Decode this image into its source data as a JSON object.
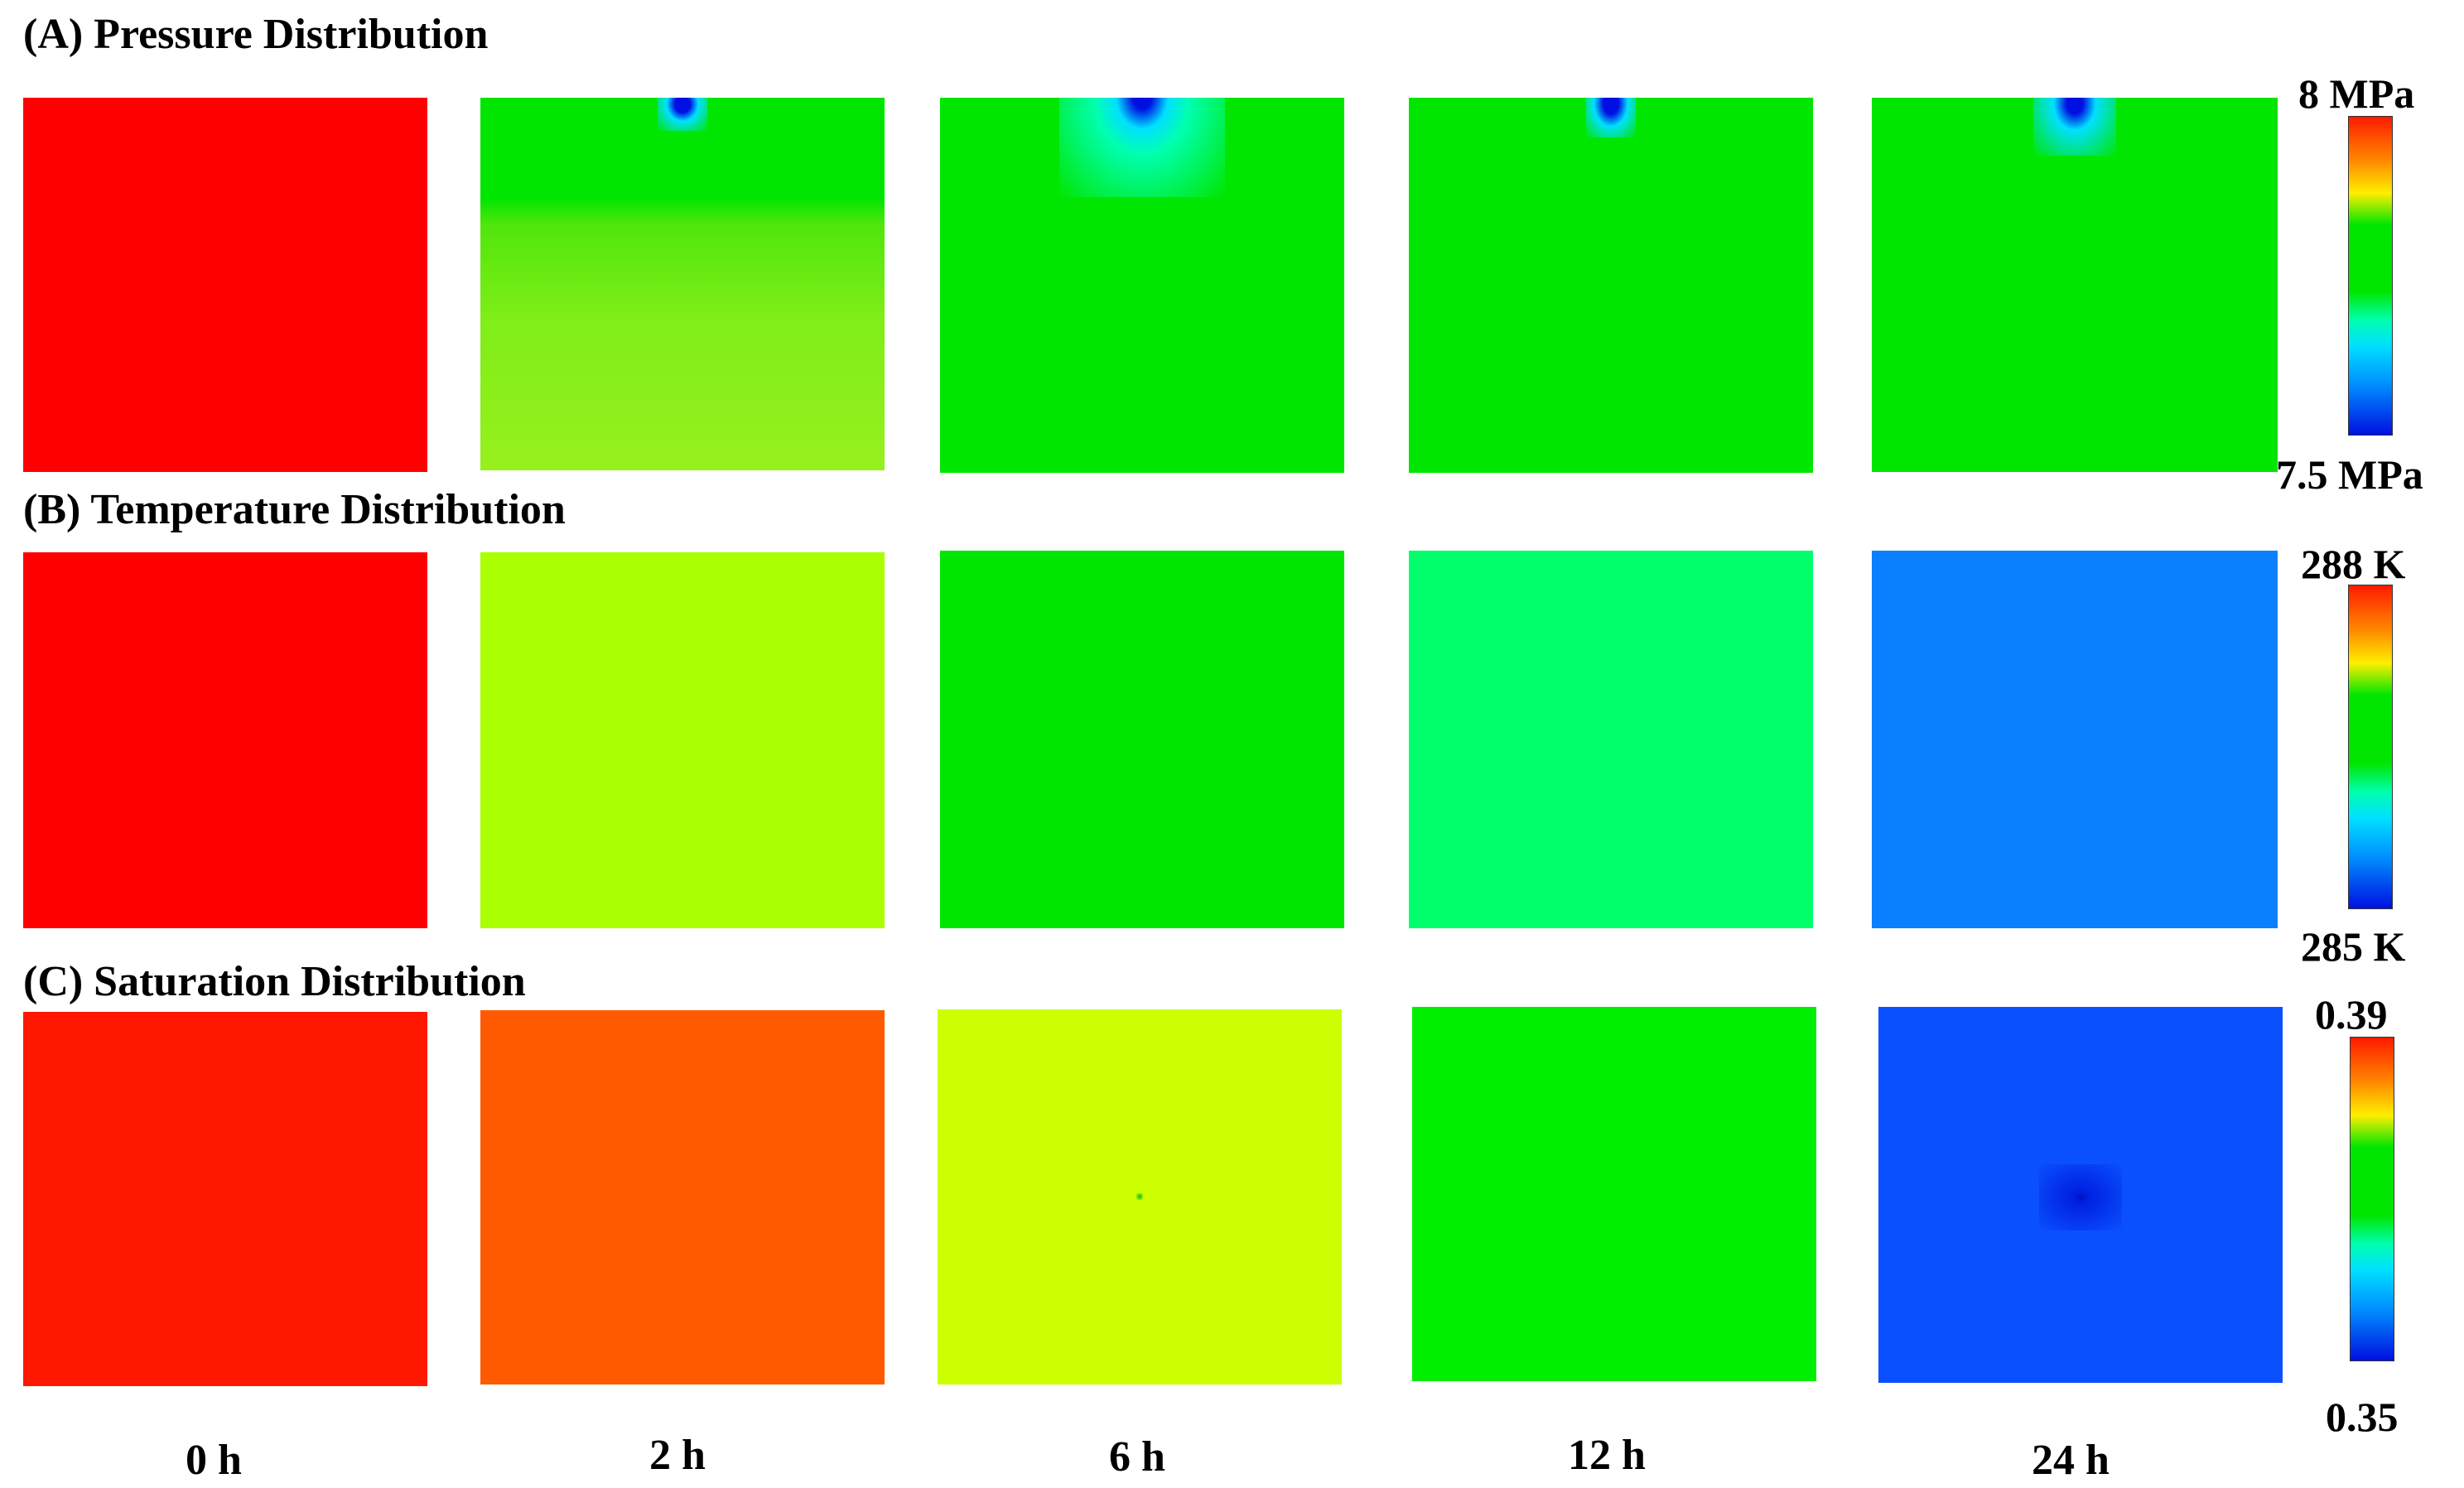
{
  "rows": [
    {
      "title": "(A) Pressure Distribution",
      "colorbar": {
        "max": "8 MPa",
        "min": "7.5 MPa"
      },
      "panel_colors": [
        "#ff0000",
        "#8cf01a",
        "#00e600",
        "#00e600",
        "#00e600"
      ]
    },
    {
      "title": "(B) Temperature Distribution",
      "colorbar": {
        "max": "288 K",
        "min": "285 K"
      },
      "panel_colors": [
        "#ff0000",
        "#aaff00",
        "#00e600",
        "#00ff6a",
        "#0a80ff"
      ]
    },
    {
      "title": "(C) Saturation Distribution",
      "colorbar": {
        "max": "0.39",
        "min": "0.35"
      },
      "panel_colors": [
        "#ff1800",
        "#ff5a00",
        "#ccff00",
        "#00ee00",
        "#0a50ff"
      ]
    }
  ],
  "times": [
    "0 h",
    "2 h",
    "6 h",
    "12 h",
    "24 h"
  ]
}
